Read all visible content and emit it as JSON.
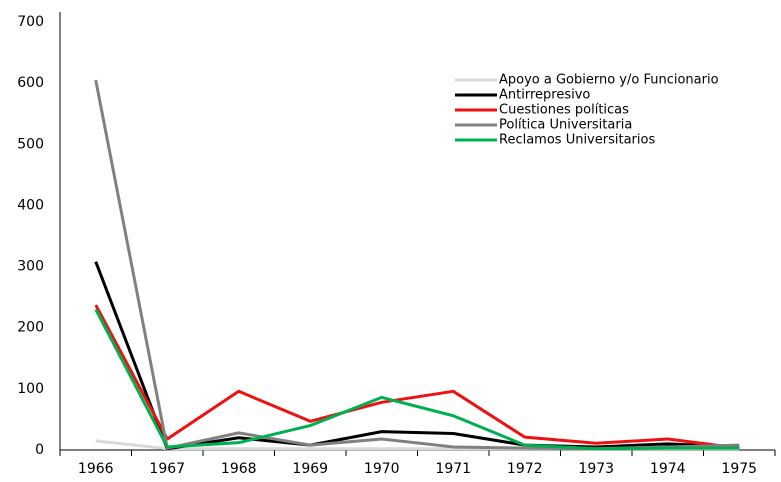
{
  "chart_data": {
    "type": "line",
    "categories": [
      "1966",
      "1967",
      "1968",
      "1969",
      "1970",
      "1971",
      "1972",
      "1973",
      "1974",
      "1975"
    ],
    "series": [
      {
        "name": "Apoyo a Gobierno y/o Funcionario",
        "color": "#d9d9d9",
        "values": [
          15,
          2,
          2,
          2,
          2,
          2,
          2,
          2,
          2,
          2
        ]
      },
      {
        "name": "Antirrepresivo",
        "color": "#000000",
        "values": [
          308,
          2,
          20,
          8,
          30,
          27,
          8,
          5,
          10,
          5
        ]
      },
      {
        "name": "Cuestiones políticas",
        "color": "#ee1111",
        "values": [
          237,
          18,
          96,
          47,
          78,
          96,
          21,
          11,
          18,
          3
        ]
      },
      {
        "name": "Política Universitaria",
        "color": "#808080",
        "values": [
          605,
          3,
          28,
          8,
          18,
          5,
          3,
          2,
          5,
          8
        ]
      },
      {
        "name": "Reclamos Universitarios",
        "color": "#00b050",
        "values": [
          230,
          5,
          12,
          40,
          86,
          56,
          8,
          2,
          3,
          3
        ]
      }
    ],
    "ylim": [
      0,
      700
    ],
    "yticks": [
      0,
      100,
      200,
      300,
      400,
      500,
      600,
      700
    ],
    "grid": false,
    "legend": "upper-right"
  }
}
